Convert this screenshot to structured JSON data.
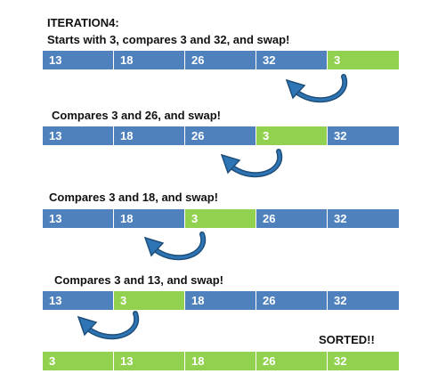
{
  "title": "ITERATION4:",
  "colors": {
    "unsorted": "#4f81bd",
    "moved": "#92d050",
    "arrow": "#1f4e79"
  },
  "steps": [
    {
      "caption": "Starts with 3, compares 3 and 32, and swap!",
      "cells": [
        "13",
        "18",
        "26",
        "32",
        "3"
      ],
      "highlight": 4
    },
    {
      "caption": "Compares  3 and 26, and swap!",
      "cells": [
        "13",
        "18",
        "26",
        "3",
        "32"
      ],
      "highlight": 3
    },
    {
      "caption": "Compares  3 and 18, and swap!",
      "cells": [
        "13",
        "18",
        "3",
        "26",
        "32"
      ],
      "highlight": 2
    },
    {
      "caption": "Compares  3 and 13, and swap!",
      "cells": [
        "13",
        "3",
        "18",
        "26",
        "32"
      ],
      "highlight": 1
    }
  ],
  "sorted_label": "SORTED!!",
  "sorted_cells": [
    "3",
    "13",
    "18",
    "26",
    "32"
  ],
  "arrow_icon": "curved-swap-arrow-icon"
}
